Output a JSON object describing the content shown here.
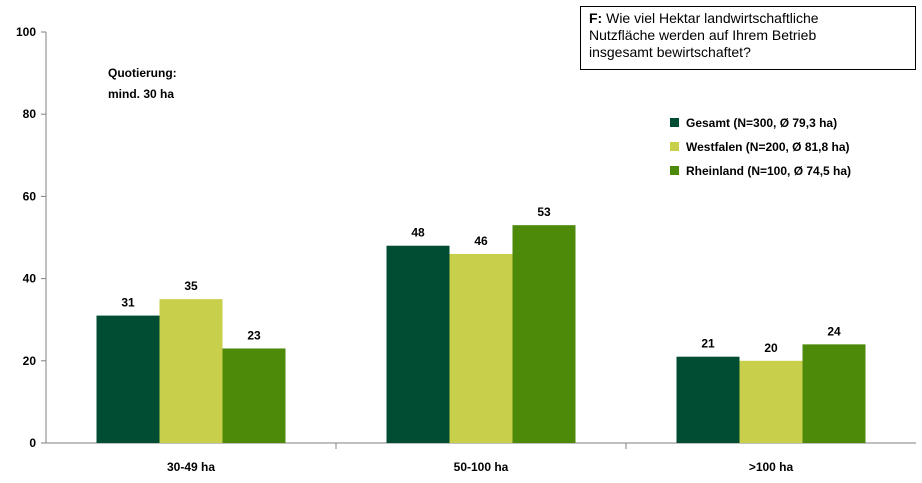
{
  "question": {
    "prefix": "F:",
    "line1": "Wie viel Hektar landwirtschaftliche",
    "line2": "Nutzfläche werden auf Ihrem Betrieb",
    "line3": "insgesamt bewirtschaftet?"
  },
  "note": {
    "line1": "Quotierung:",
    "line2": "mind. 30 ha"
  },
  "chart_data": {
    "type": "bar",
    "title": "",
    "xlabel": "",
    "ylabel": "",
    "categories": [
      "30-49 ha",
      "50-100 ha",
      ">100 ha"
    ],
    "ylim": [
      0,
      100
    ],
    "yticks": [
      0,
      20,
      40,
      60,
      80,
      100
    ],
    "grid": false,
    "legend_position": "right",
    "series": [
      {
        "name": "Gesamt (N=300, Ø 79,3 ha)",
        "values": [
          31,
          48,
          21
        ],
        "color": "#004d33"
      },
      {
        "name": "Westfalen  (N=200, Ø 81,8 ha)",
        "values": [
          35,
          46,
          20
        ],
        "color": "#c8cf4a"
      },
      {
        "name": "Rheinland (N=100, Ø 74,5 ha)",
        "values": [
          23,
          53,
          24
        ],
        "color": "#4d8a0a"
      }
    ]
  }
}
